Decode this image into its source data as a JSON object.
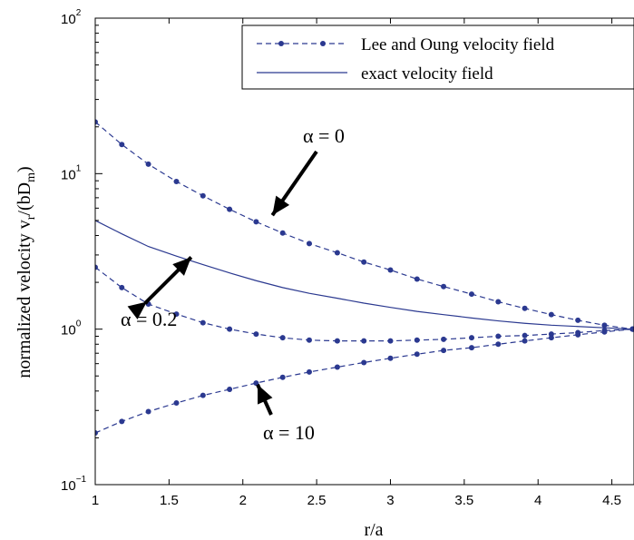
{
  "chart_data": {
    "type": "line",
    "xlabel": "r/a",
    "ylabel": "normalized velocity v",
    "ylabel_sub_r": "r",
    "ylabel_tail": "/(bD",
    "ylabel_sub_m": "m",
    "ylabel_close": ")",
    "xlim": [
      1,
      4.65
    ],
    "ylim": [
      0.1,
      100
    ],
    "yscale": "log",
    "grid": false,
    "x_ticks": [
      "1",
      "1.5",
      "2",
      "2.5",
      "3",
      "3.5",
      "4",
      "4.5"
    ],
    "y_ticks": [
      {
        "base": "10",
        "exp": "−1",
        "value": 0.1
      },
      {
        "base": "10",
        "exp": "0",
        "value": 1
      },
      {
        "base": "10",
        "exp": "1",
        "value": 10
      },
      {
        "base": "10",
        "exp": "2",
        "value": 100
      }
    ],
    "legend": {
      "position": "top-right",
      "entries": [
        "Lee and Oung velocity field",
        "exact velocity field"
      ]
    },
    "colors": {
      "series": "#2b3990"
    },
    "series": [
      {
        "name": "Lee and Oung velocity field",
        "label": "α = 0",
        "style": "dashed-dots",
        "values": [
          21.5,
          15.4,
          11.5,
          8.9,
          7.2,
          5.9,
          4.9,
          4.15,
          3.55,
          3.1,
          2.7,
          2.4,
          2.1,
          1.88,
          1.68,
          1.5,
          1.36,
          1.24,
          1.14,
          1.06,
          1.0
        ]
      },
      {
        "name": "Lee and Oung velocity field",
        "label": "α = 0.2",
        "style": "dashed-dots",
        "values": [
          2.5,
          1.85,
          1.45,
          1.25,
          1.1,
          1.0,
          0.93,
          0.88,
          0.85,
          0.84,
          0.84,
          0.84,
          0.85,
          0.86,
          0.88,
          0.9,
          0.91,
          0.93,
          0.95,
          0.98,
          1.0
        ]
      },
      {
        "name": "exact velocity field",
        "label": "α = 0.2",
        "style": "solid",
        "values": [
          5.0,
          4.1,
          3.4,
          2.95,
          2.6,
          2.3,
          2.05,
          1.85,
          1.7,
          1.58,
          1.47,
          1.38,
          1.3,
          1.24,
          1.18,
          1.13,
          1.09,
          1.06,
          1.04,
          1.02,
          1.0
        ]
      },
      {
        "name": "Lee and Oung velocity field",
        "label": "α = 10",
        "style": "dashed-dots",
        "values": [
          0.215,
          0.255,
          0.295,
          0.335,
          0.375,
          0.41,
          0.45,
          0.49,
          0.53,
          0.57,
          0.61,
          0.65,
          0.69,
          0.73,
          0.76,
          0.8,
          0.84,
          0.88,
          0.92,
          0.96,
          1.0
        ]
      }
    ],
    "x": [
      1.0,
      1.18,
      1.36,
      1.55,
      1.73,
      1.91,
      2.09,
      2.27,
      2.45,
      2.64,
      2.82,
      3.0,
      3.18,
      3.36,
      3.55,
      3.73,
      3.91,
      4.09,
      4.27,
      4.45,
      4.64
    ],
    "annotations": [
      {
        "text": "α = 0",
        "target_x": 2.2,
        "target_y": 5.4
      },
      {
        "text": "α = 0.2",
        "targets": [
          [
            1.35,
            1.5
          ],
          [
            1.65,
            2.9
          ]
        ]
      },
      {
        "text": "α = 10",
        "target_x": 2.1,
        "target_y": 0.44
      }
    ]
  }
}
